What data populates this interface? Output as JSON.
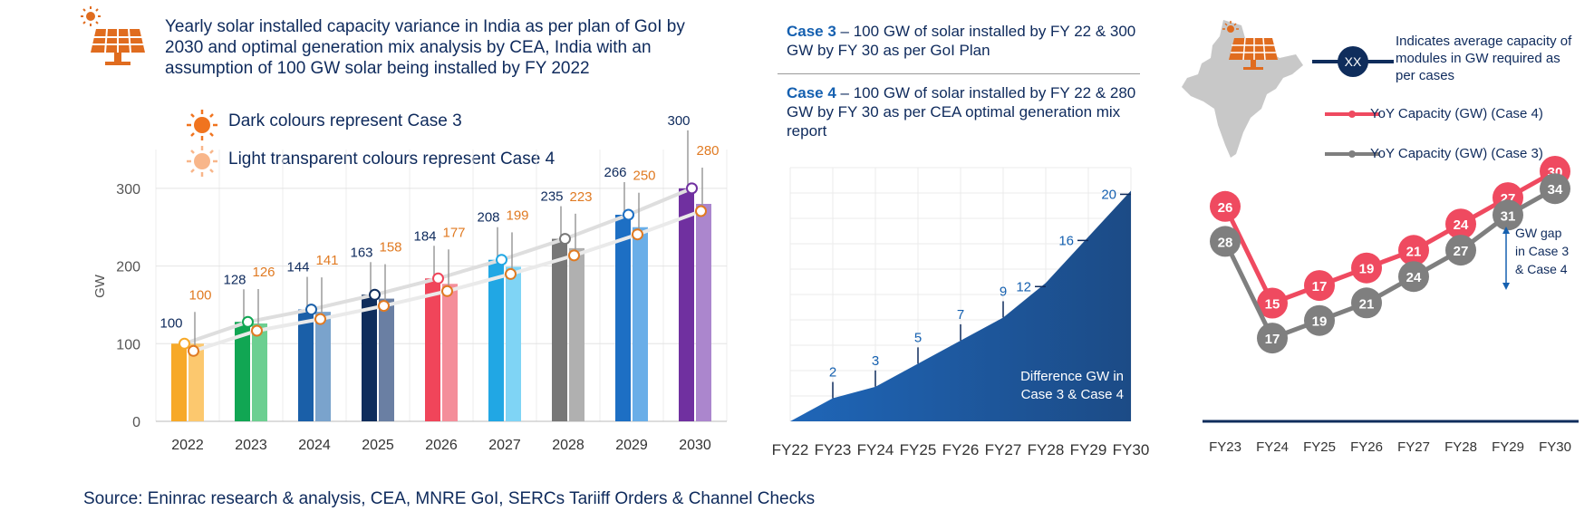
{
  "title": "Yearly solar installed capacity variance in India as per plan of GoI by 2030 and optimal generation mix analysis by CEA, India with an assumption of 100 GW solar being installed by FY 2022",
  "legend": {
    "dark": "Dark colours represent Case 3",
    "light": "Light transparent colours represent Case 4"
  },
  "case3": {
    "label": "Case 3",
    "text": " – 100 GW of solar installed by FY 22 &  300 GW by FY 30 as per GoI Plan"
  },
  "case4": {
    "label": "Case 4",
    "text": " – 100 GW of solar installed by FY 22 &  280 GW by FY 30 as per CEA optimal generation mix report"
  },
  "right_legend": {
    "marker": "XX",
    "marker_text": "Indicates average capacity of modules in GW required as per cases",
    "case4_series": "YoY Capacity (GW) (Case 4)",
    "case3_series": "YoY Capacity (GW) (Case 3)",
    "gap_label_line1": "GW gap",
    "gap_label_line2": "in Case 3",
    "gap_label_line3": "& Case 4"
  },
  "source": "Source: Eninrac research & analysis, CEA, MNRE GoI, SERCs Tariiff Orders & Channel Checks",
  "colors": {
    "dark": [
      "#f7a928",
      "#11a653",
      "#1a5fa8",
      "#0f2d5c",
      "#f0455a",
      "#21a7e4",
      "#777777",
      "#1d6fc4",
      "#7030a0"
    ],
    "light": [
      "#fcc86e",
      "#6ccf91",
      "#7aa3cc",
      "#6a7fa3",
      "#f48e9a",
      "#7fd4f5",
      "#b0b0b0",
      "#6aaee8",
      "#ab86cd"
    ],
    "dark_labels": "#0e2a5c",
    "light_labels": "#e07a22",
    "area": "#1b4f91",
    "case4_line": "#ef4a60",
    "case3_line": "#7f7f7f",
    "icon": "#e06c1f"
  },
  "chart_data": [
    {
      "type": "bar",
      "categories": [
        "2022",
        "2023",
        "2024",
        "2025",
        "2026",
        "2027",
        "2028",
        "2029",
        "2030"
      ],
      "series": [
        {
          "name": "Case 3",
          "values": [
            100,
            128,
            144,
            163,
            184,
            208,
            235,
            266,
            300
          ]
        },
        {
          "name": "Case 4",
          "values": [
            100,
            126,
            141,
            158,
            177,
            199,
            223,
            250,
            280
          ]
        }
      ],
      "ylabel": "GW",
      "ylim": [
        0,
        350
      ],
      "yticks": [
        0,
        100,
        200,
        300
      ],
      "grid": true
    },
    {
      "type": "area",
      "x": [
        "FY22",
        "FY23",
        "FY24",
        "FY25",
        "FY26",
        "FY27",
        "FY28",
        "FY29",
        "FY30"
      ],
      "values": [
        0,
        2,
        3,
        5,
        7,
        9,
        12,
        16,
        20
      ],
      "labels": [
        "",
        "2",
        "3",
        "5",
        "7",
        "9",
        "12",
        "16",
        "20"
      ],
      "annotation_line1": "Difference GW in",
      "annotation_line2": "Case 3 & Case 4"
    },
    {
      "type": "line",
      "x": [
        "FY23",
        "FY24",
        "FY25",
        "FY26",
        "FY27",
        "FY28",
        "FY29",
        "FY30"
      ],
      "series": [
        {
          "name": "YoY Capacity (GW) (Case 4)",
          "values": [
            26,
            15,
            17,
            19,
            21,
            24,
            27,
            30
          ]
        },
        {
          "name": "YoY Capacity (GW) (Case 3)",
          "values": [
            28,
            17,
            19,
            21,
            24,
            27,
            31,
            34
          ]
        }
      ]
    }
  ]
}
